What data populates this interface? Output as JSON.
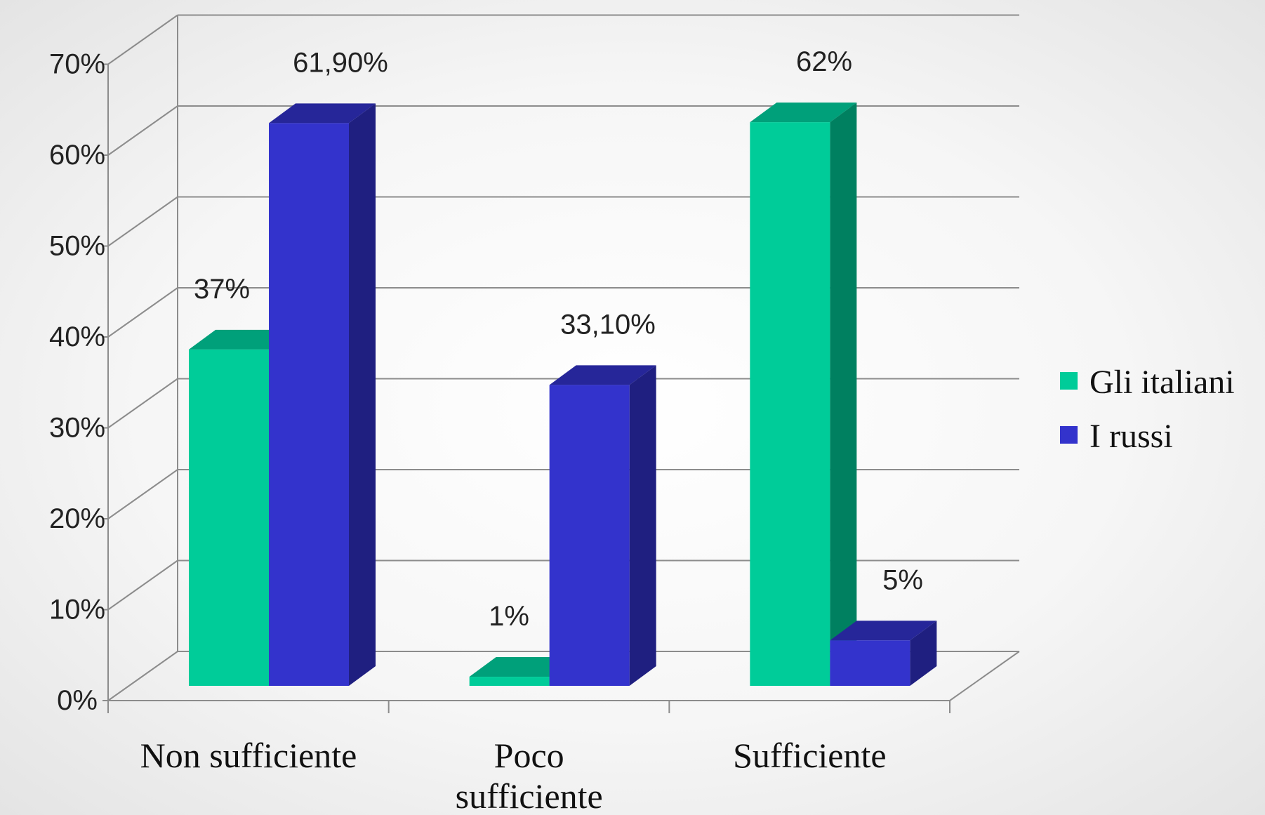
{
  "chart_data": {
    "type": "bar",
    "categories": [
      "Non sufficiente",
      "Poco sufficiente",
      "Sufficiente"
    ],
    "category_label_lines": [
      [
        "Non sufficiente"
      ],
      [
        "Poco",
        "sufficiente"
      ],
      [
        "Sufficiente"
      ]
    ],
    "series": [
      {
        "name": "Gli italiani",
        "values": [
          37,
          1,
          62
        ],
        "data_labels": [
          "37%",
          "1%",
          "62%"
        ],
        "color": "#00CC99",
        "top_color": "#00A07A",
        "side_color": "#008060"
      },
      {
        "name": "I russi",
        "values": [
          61.9,
          33.1,
          5
        ],
        "data_labels": [
          "61,90%",
          "33,10%",
          "5%"
        ],
        "color": "#3333CC",
        "top_color": "#262699",
        "side_color": "#1F1F80"
      }
    ],
    "y_ticks": [
      "0%",
      "10%",
      "20%",
      "30%",
      "40%",
      "50%",
      "60%",
      "70%"
    ],
    "ylim": [
      0,
      70
    ],
    "grid": true,
    "legend_position": "right",
    "three_d": true
  }
}
